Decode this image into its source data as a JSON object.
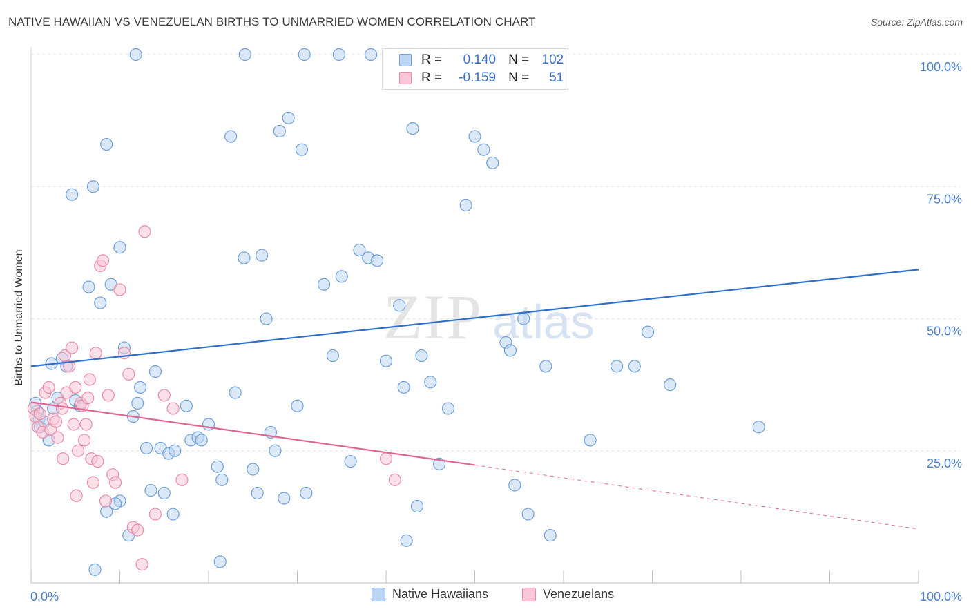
{
  "title": "NATIVE HAWAIIAN VS VENEZUELAN BIRTHS TO UNMARRIED WOMEN CORRELATION CHART",
  "source": "Source: ZipAtlas.com",
  "watermark": {
    "zip": "ZIP",
    "atlas": "atlas"
  },
  "legend": {
    "rows": [
      {
        "r_label": "R =",
        "r_value": "0.140",
        "n_label": "N =",
        "n_value": "102"
      },
      {
        "r_label": "R =",
        "r_value": "-0.159",
        "n_label": "N =",
        "n_value": "51"
      }
    ]
  },
  "bottom_legend": [
    "Native Hawaiians",
    "Venezuelans"
  ],
  "colors": {
    "blue_fill": "#bcd5f3",
    "blue_stroke": "#6f9fd8",
    "blue_line": "#2f6fcc",
    "pink_fill": "#f8c6d6",
    "pink_stroke": "#e88aa9",
    "pink_line": "#e06690",
    "axis_label": "#4a7fc8",
    "grid": "#e2e2e2"
  },
  "chart_data": {
    "type": "scatter",
    "title": "NATIVE HAWAIIAN VS VENEZUELAN BIRTHS TO UNMARRIED WOMEN CORRELATION CHART",
    "xlabel": "",
    "ylabel": "Births to Unmarried Women",
    "xlim": [
      0,
      100
    ],
    "ylim": [
      0,
      100
    ],
    "x_ticks": [
      "0.0%",
      "100.0%"
    ],
    "y_ticks": [
      "25.0%",
      "50.0%",
      "75.0%",
      "100.0%"
    ],
    "y_tick_values": [
      25,
      50,
      75,
      100
    ],
    "grid": true,
    "legend_position": "top-center",
    "series": [
      {
        "name": "Native Hawaiians",
        "r": 0.14,
        "n": 102,
        "trend": {
          "x": [
            0,
            100
          ],
          "y": [
            41,
            59.3
          ],
          "dashed_from": null
        },
        "points": [
          [
            0.5,
            34
          ],
          [
            0.7,
            32.5
          ],
          [
            0.9,
            31
          ],
          [
            1.0,
            29.5
          ],
          [
            1.5,
            30.5
          ],
          [
            2,
            27
          ],
          [
            2.3,
            41.5
          ],
          [
            2.5,
            33
          ],
          [
            3,
            35
          ],
          [
            3.5,
            42.5
          ],
          [
            4,
            41
          ],
          [
            5,
            34.5
          ],
          [
            5.5,
            33.5
          ],
          [
            4.6,
            73.5
          ],
          [
            6.5,
            56
          ],
          [
            7,
            75
          ],
          [
            7.8,
            53
          ],
          [
            8.5,
            83
          ],
          [
            9,
            56.5
          ],
          [
            10,
            63.5
          ],
          [
            10.5,
            44.5
          ],
          [
            11.5,
            31.5
          ],
          [
            12,
            34
          ],
          [
            12.3,
            37
          ],
          [
            13,
            25.5
          ],
          [
            13.5,
            17.5
          ],
          [
            14,
            40
          ],
          [
            14.6,
            25.5
          ],
          [
            15,
            17
          ],
          [
            15.5,
            24.5
          ],
          [
            16,
            13
          ],
          [
            17.5,
            33.5
          ],
          [
            18,
            27
          ],
          [
            18.8,
            27.5
          ],
          [
            20,
            30
          ],
          [
            21,
            22
          ],
          [
            21.5,
            19.5
          ],
          [
            22.5,
            84.5
          ],
          [
            23,
            36
          ],
          [
            24,
            61.5
          ],
          [
            25,
            21.5
          ],
          [
            25.5,
            17
          ],
          [
            26,
            62
          ],
          [
            26.5,
            50
          ],
          [
            27,
            28.5
          ],
          [
            27.5,
            25
          ],
          [
            28,
            85.5
          ],
          [
            28.5,
            16
          ],
          [
            29,
            88
          ],
          [
            30,
            33.5
          ],
          [
            30.5,
            82
          ],
          [
            31,
            17
          ],
          [
            11.8,
            100
          ],
          [
            24.1,
            100
          ],
          [
            30.8,
            100
          ],
          [
            34.7,
            100
          ],
          [
            38.3,
            100
          ],
          [
            41,
            100
          ],
          [
            43.5,
            100
          ],
          [
            46.5,
            100
          ],
          [
            49,
            100
          ],
          [
            33,
            56.5
          ],
          [
            34,
            43
          ],
          [
            35,
            58
          ],
          [
            36,
            23
          ],
          [
            37,
            63
          ],
          [
            38,
            61.5
          ],
          [
            39,
            61
          ],
          [
            40,
            42
          ],
          [
            41.5,
            52.5
          ],
          [
            42,
            37
          ],
          [
            43,
            86
          ],
          [
            43.5,
            14.5
          ],
          [
            42.3,
            8
          ],
          [
            44,
            43
          ],
          [
            45,
            38
          ],
          [
            46,
            22.5
          ],
          [
            47,
            33
          ],
          [
            49,
            71.5
          ],
          [
            50,
            84.5
          ],
          [
            51,
            82
          ],
          [
            52,
            79.5
          ],
          [
            53.5,
            45.5
          ],
          [
            54,
            44
          ],
          [
            55.5,
            50
          ],
          [
            54.5,
            18.5
          ],
          [
            56,
            13
          ],
          [
            58,
            41
          ],
          [
            58.5,
            9
          ],
          [
            63,
            27
          ],
          [
            66,
            41
          ],
          [
            68,
            41
          ],
          [
            69.5,
            47.5
          ],
          [
            72,
            37.5
          ],
          [
            82,
            29.5
          ],
          [
            10,
            15.5
          ],
          [
            8.5,
            13.5
          ],
          [
            9.5,
            15
          ],
          [
            11,
            9
          ],
          [
            7.2,
            2.5
          ],
          [
            21.3,
            4
          ],
          [
            16.2,
            25
          ],
          [
            19.2,
            27
          ]
        ]
      },
      {
        "name": "Venezuelans",
        "r": -0.159,
        "n": 51,
        "trend": {
          "x": [
            0,
            50,
            100
          ],
          "y": [
            34.2,
            22.3,
            10.2
          ],
          "dashed_from": 50
        },
        "points": [
          [
            0.3,
            33
          ],
          [
            0.5,
            31.5
          ],
          [
            0.8,
            29.5
          ],
          [
            1,
            32
          ],
          [
            1.3,
            28.5
          ],
          [
            1.6,
            36
          ],
          [
            2,
            37
          ],
          [
            2.2,
            29
          ],
          [
            2.5,
            31
          ],
          [
            2.8,
            30.5
          ],
          [
            3,
            27.5
          ],
          [
            3.3,
            34
          ],
          [
            3.5,
            33
          ],
          [
            3.8,
            43
          ],
          [
            4,
            36
          ],
          [
            4.3,
            41
          ],
          [
            4.6,
            44.5
          ],
          [
            4.8,
            30
          ],
          [
            5,
            37
          ],
          [
            5.3,
            25
          ],
          [
            5.6,
            34
          ],
          [
            5.8,
            33.5
          ],
          [
            6,
            27
          ],
          [
            6.2,
            30
          ],
          [
            6.4,
            35
          ],
          [
            6.6,
            38.5
          ],
          [
            6.8,
            23.5
          ],
          [
            7,
            19
          ],
          [
            7.3,
            43.5
          ],
          [
            7.5,
            23
          ],
          [
            7.8,
            60
          ],
          [
            8.1,
            61
          ],
          [
            8.4,
            15.5
          ],
          [
            8.7,
            35.5
          ],
          [
            9.2,
            20.5
          ],
          [
            9.5,
            19
          ],
          [
            10,
            55.5
          ],
          [
            10.5,
            43.5
          ],
          [
            11,
            39.5
          ],
          [
            11.5,
            10.5
          ],
          [
            12,
            10
          ],
          [
            12.5,
            3.5
          ],
          [
            12.8,
            66.5
          ],
          [
            14,
            13
          ],
          [
            15,
            35.5
          ],
          [
            16,
            33
          ],
          [
            17,
            19.5
          ],
          [
            40,
            23.5
          ],
          [
            41,
            19.5
          ],
          [
            3.6,
            23.5
          ],
          [
            5.1,
            16.5
          ]
        ]
      }
    ]
  }
}
